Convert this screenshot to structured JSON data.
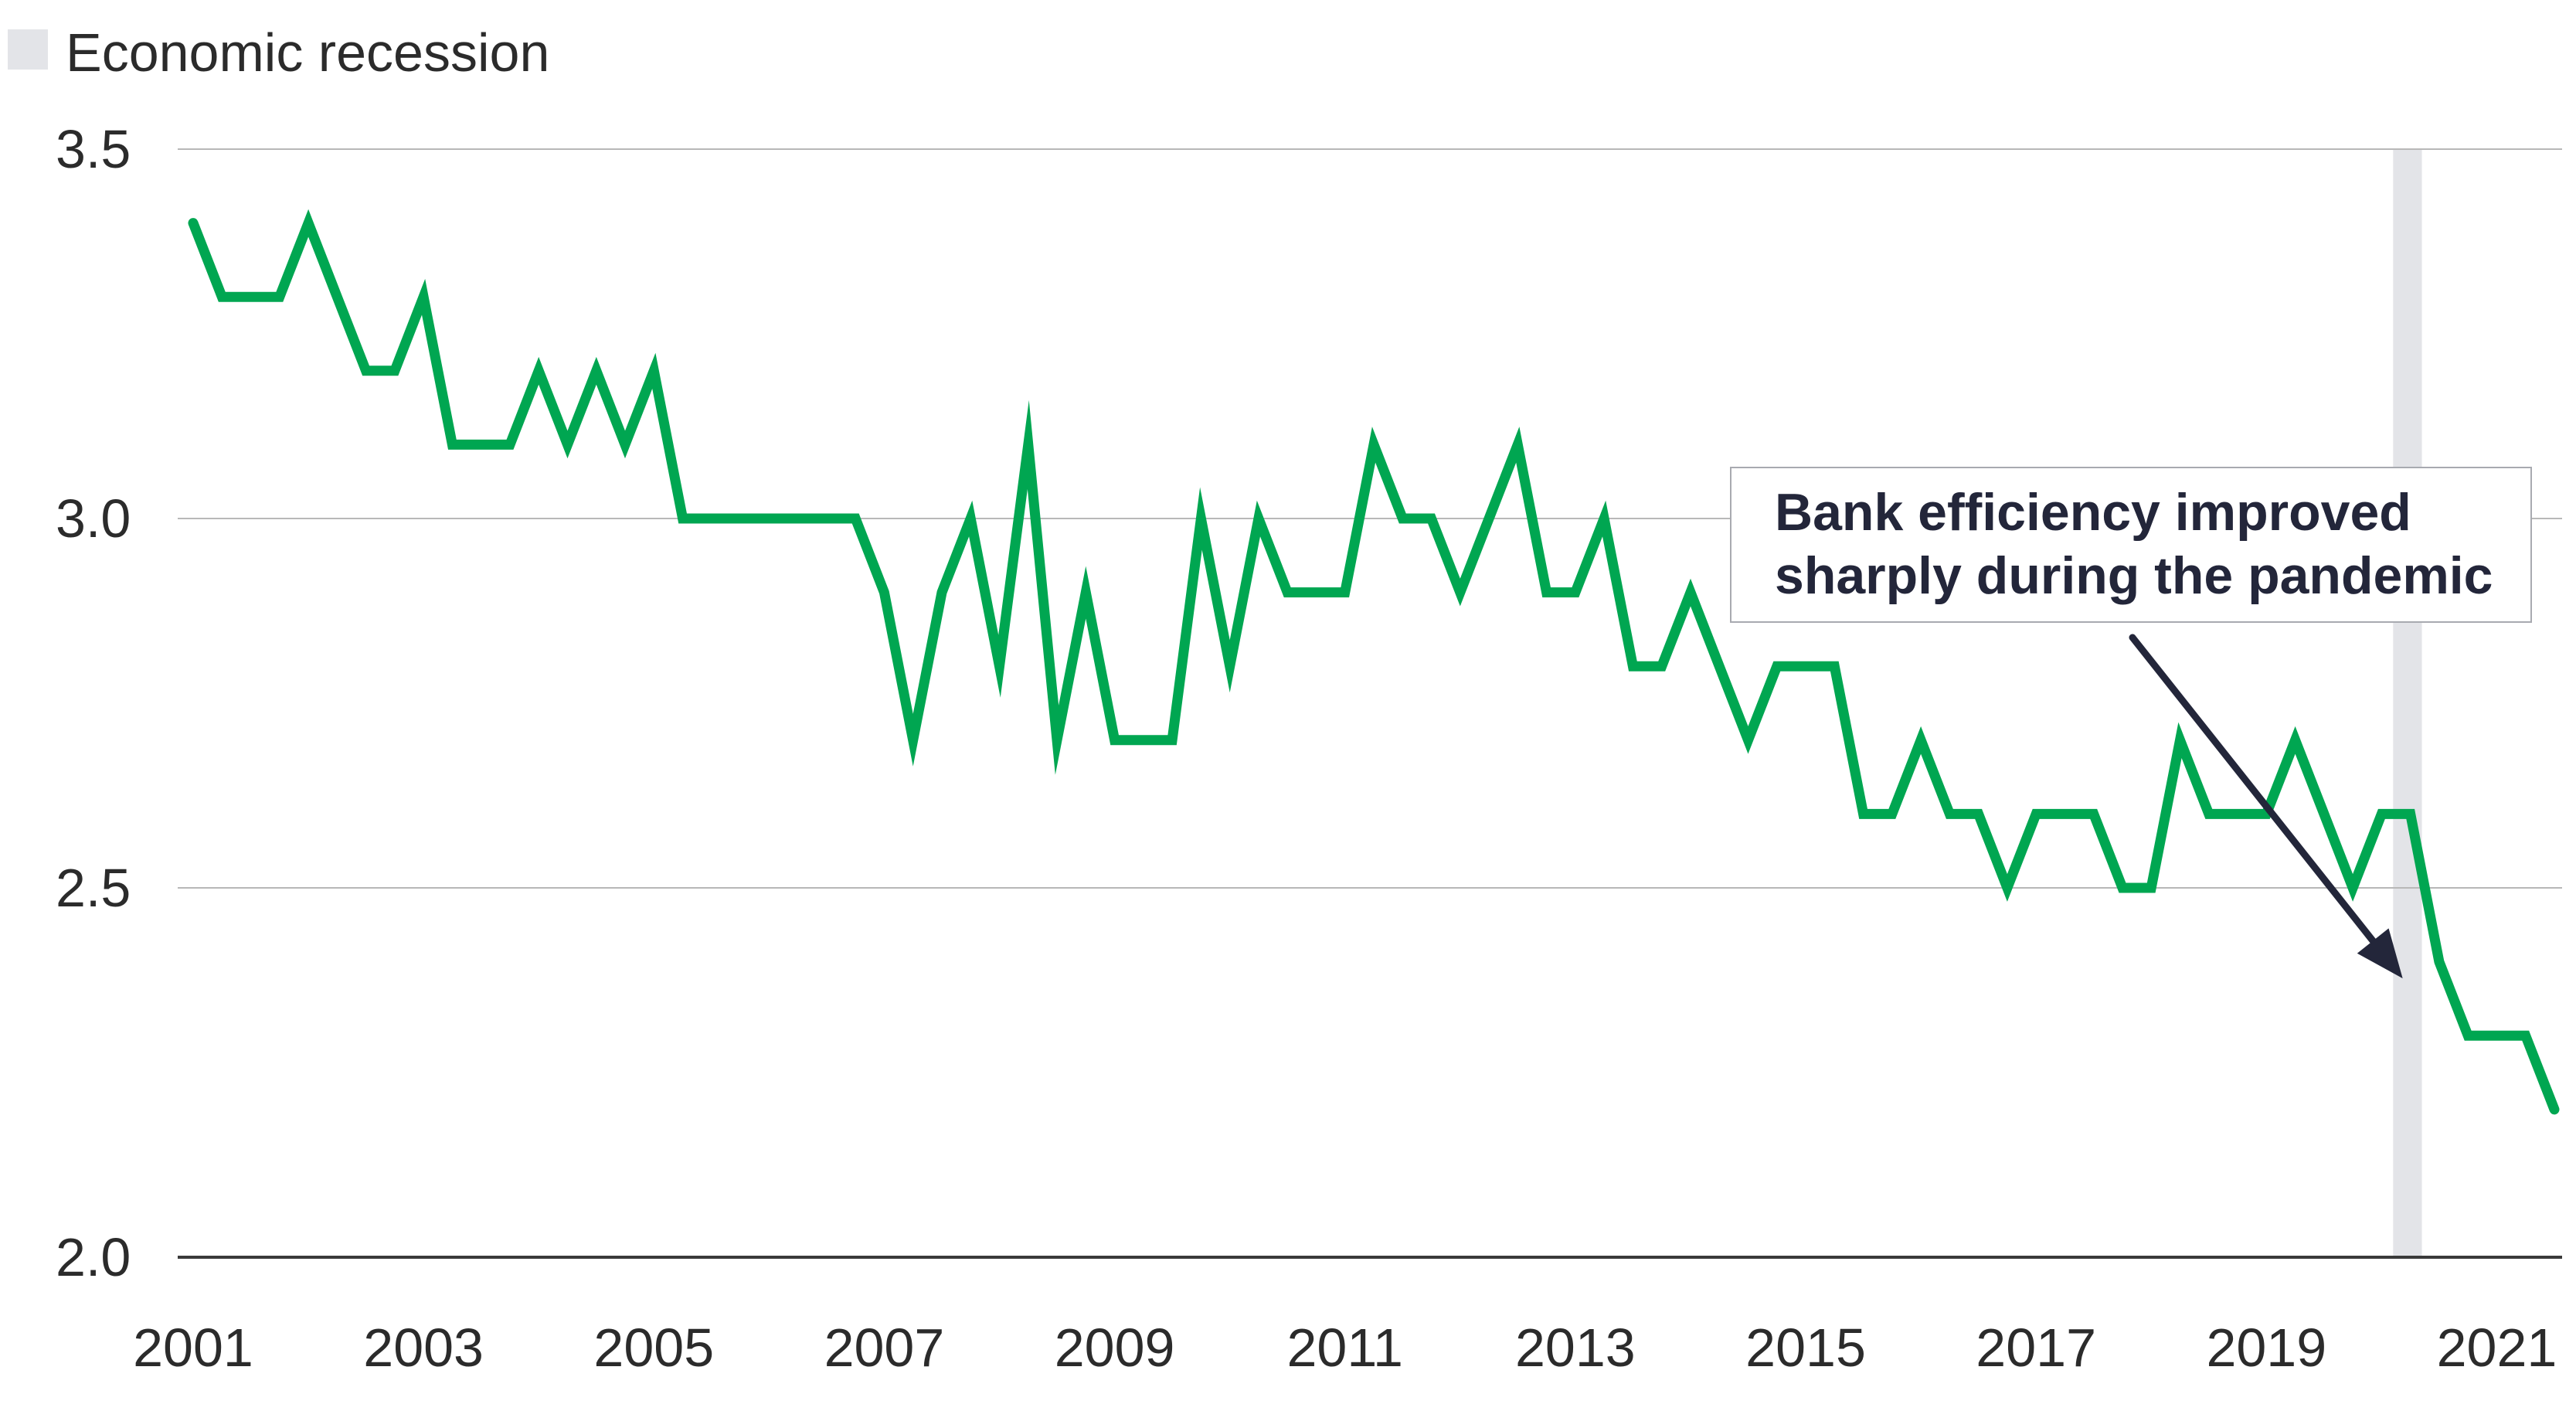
{
  "chart_data": {
    "type": "line",
    "legend": {
      "label": "Economic recession",
      "color": "#e3e4e8",
      "placement": "top-left"
    },
    "recession_periods": [
      [
        2020.1,
        2020.35
      ]
    ],
    "series": [
      {
        "color": "#00a651",
        "x": [
          2001.0,
          2001.25,
          2001.5,
          2001.75,
          2002.0,
          2002.25,
          2002.5,
          2002.75,
          2003.0,
          2003.25,
          2003.5,
          2003.75,
          2004.0,
          2004.25,
          2004.5,
          2004.75,
          2005.0,
          2005.25,
          2005.5,
          2005.75,
          2006.0,
          2006.25,
          2006.5,
          2006.75,
          2007.0,
          2007.25,
          2007.5,
          2007.75,
          2008.0,
          2008.25,
          2008.5,
          2008.75,
          2009.0,
          2009.25,
          2009.5,
          2009.75,
          2010.0,
          2010.25,
          2010.5,
          2010.75,
          2011.0,
          2011.25,
          2011.5,
          2011.75,
          2012.0,
          2012.25,
          2012.5,
          2012.75,
          2013.0,
          2013.25,
          2013.5,
          2013.75,
          2014.0,
          2014.25,
          2014.5,
          2014.75,
          2015.0,
          2015.25,
          2015.5,
          2015.75,
          2016.0,
          2016.25,
          2016.5,
          2016.75,
          2017.0,
          2017.25,
          2017.5,
          2017.75,
          2018.0,
          2018.25,
          2018.5,
          2018.75,
          2019.0,
          2019.25,
          2019.5,
          2019.75,
          2020.0,
          2020.25,
          2020.5,
          2020.75,
          2021.0,
          2021.25,
          2021.5
        ],
        "y": [
          3.4,
          3.3,
          3.3,
          3.3,
          3.4,
          3.3,
          3.2,
          3.2,
          3.3,
          3.1,
          3.1,
          3.1,
          3.2,
          3.1,
          3.2,
          3.1,
          3.2,
          3.0,
          3.0,
          3.0,
          3.0,
          3.0,
          3.0,
          3.0,
          2.9,
          2.7,
          2.9,
          3.0,
          2.8,
          3.1,
          2.7,
          2.9,
          2.7,
          2.7,
          2.7,
          3.0,
          2.8,
          3.0,
          2.9,
          2.9,
          2.9,
          3.1,
          3.0,
          3.0,
          2.9,
          3.0,
          3.1,
          2.9,
          2.9,
          3.0,
          2.8,
          2.8,
          2.9,
          2.8,
          2.7,
          2.8,
          2.8,
          2.8,
          2.6,
          2.6,
          2.7,
          2.6,
          2.6,
          2.5,
          2.6,
          2.6,
          2.6,
          2.5,
          2.5,
          2.7,
          2.6,
          2.6,
          2.6,
          2.7,
          2.6,
          2.5,
          2.6,
          2.6,
          2.4,
          2.3,
          2.3,
          2.3,
          2.2
        ]
      }
    ],
    "xlim": [
      2001,
      2021.5
    ],
    "ylim": [
      2.0,
      3.5
    ],
    "y_ticks": [
      "2.0",
      "2.5",
      "3.0",
      "3.5"
    ],
    "x_ticks": [
      "2001",
      "2003",
      "2005",
      "2007",
      "2009",
      "2011",
      "2013",
      "2015",
      "2017",
      "2019",
      "2021"
    ],
    "grid": "horizontal",
    "annotation": {
      "lines": [
        "Bank efficiency improved",
        "sharply during the pandemic"
      ],
      "points_to": {
        "x": 2020.25,
        "y": 2.39
      }
    }
  }
}
